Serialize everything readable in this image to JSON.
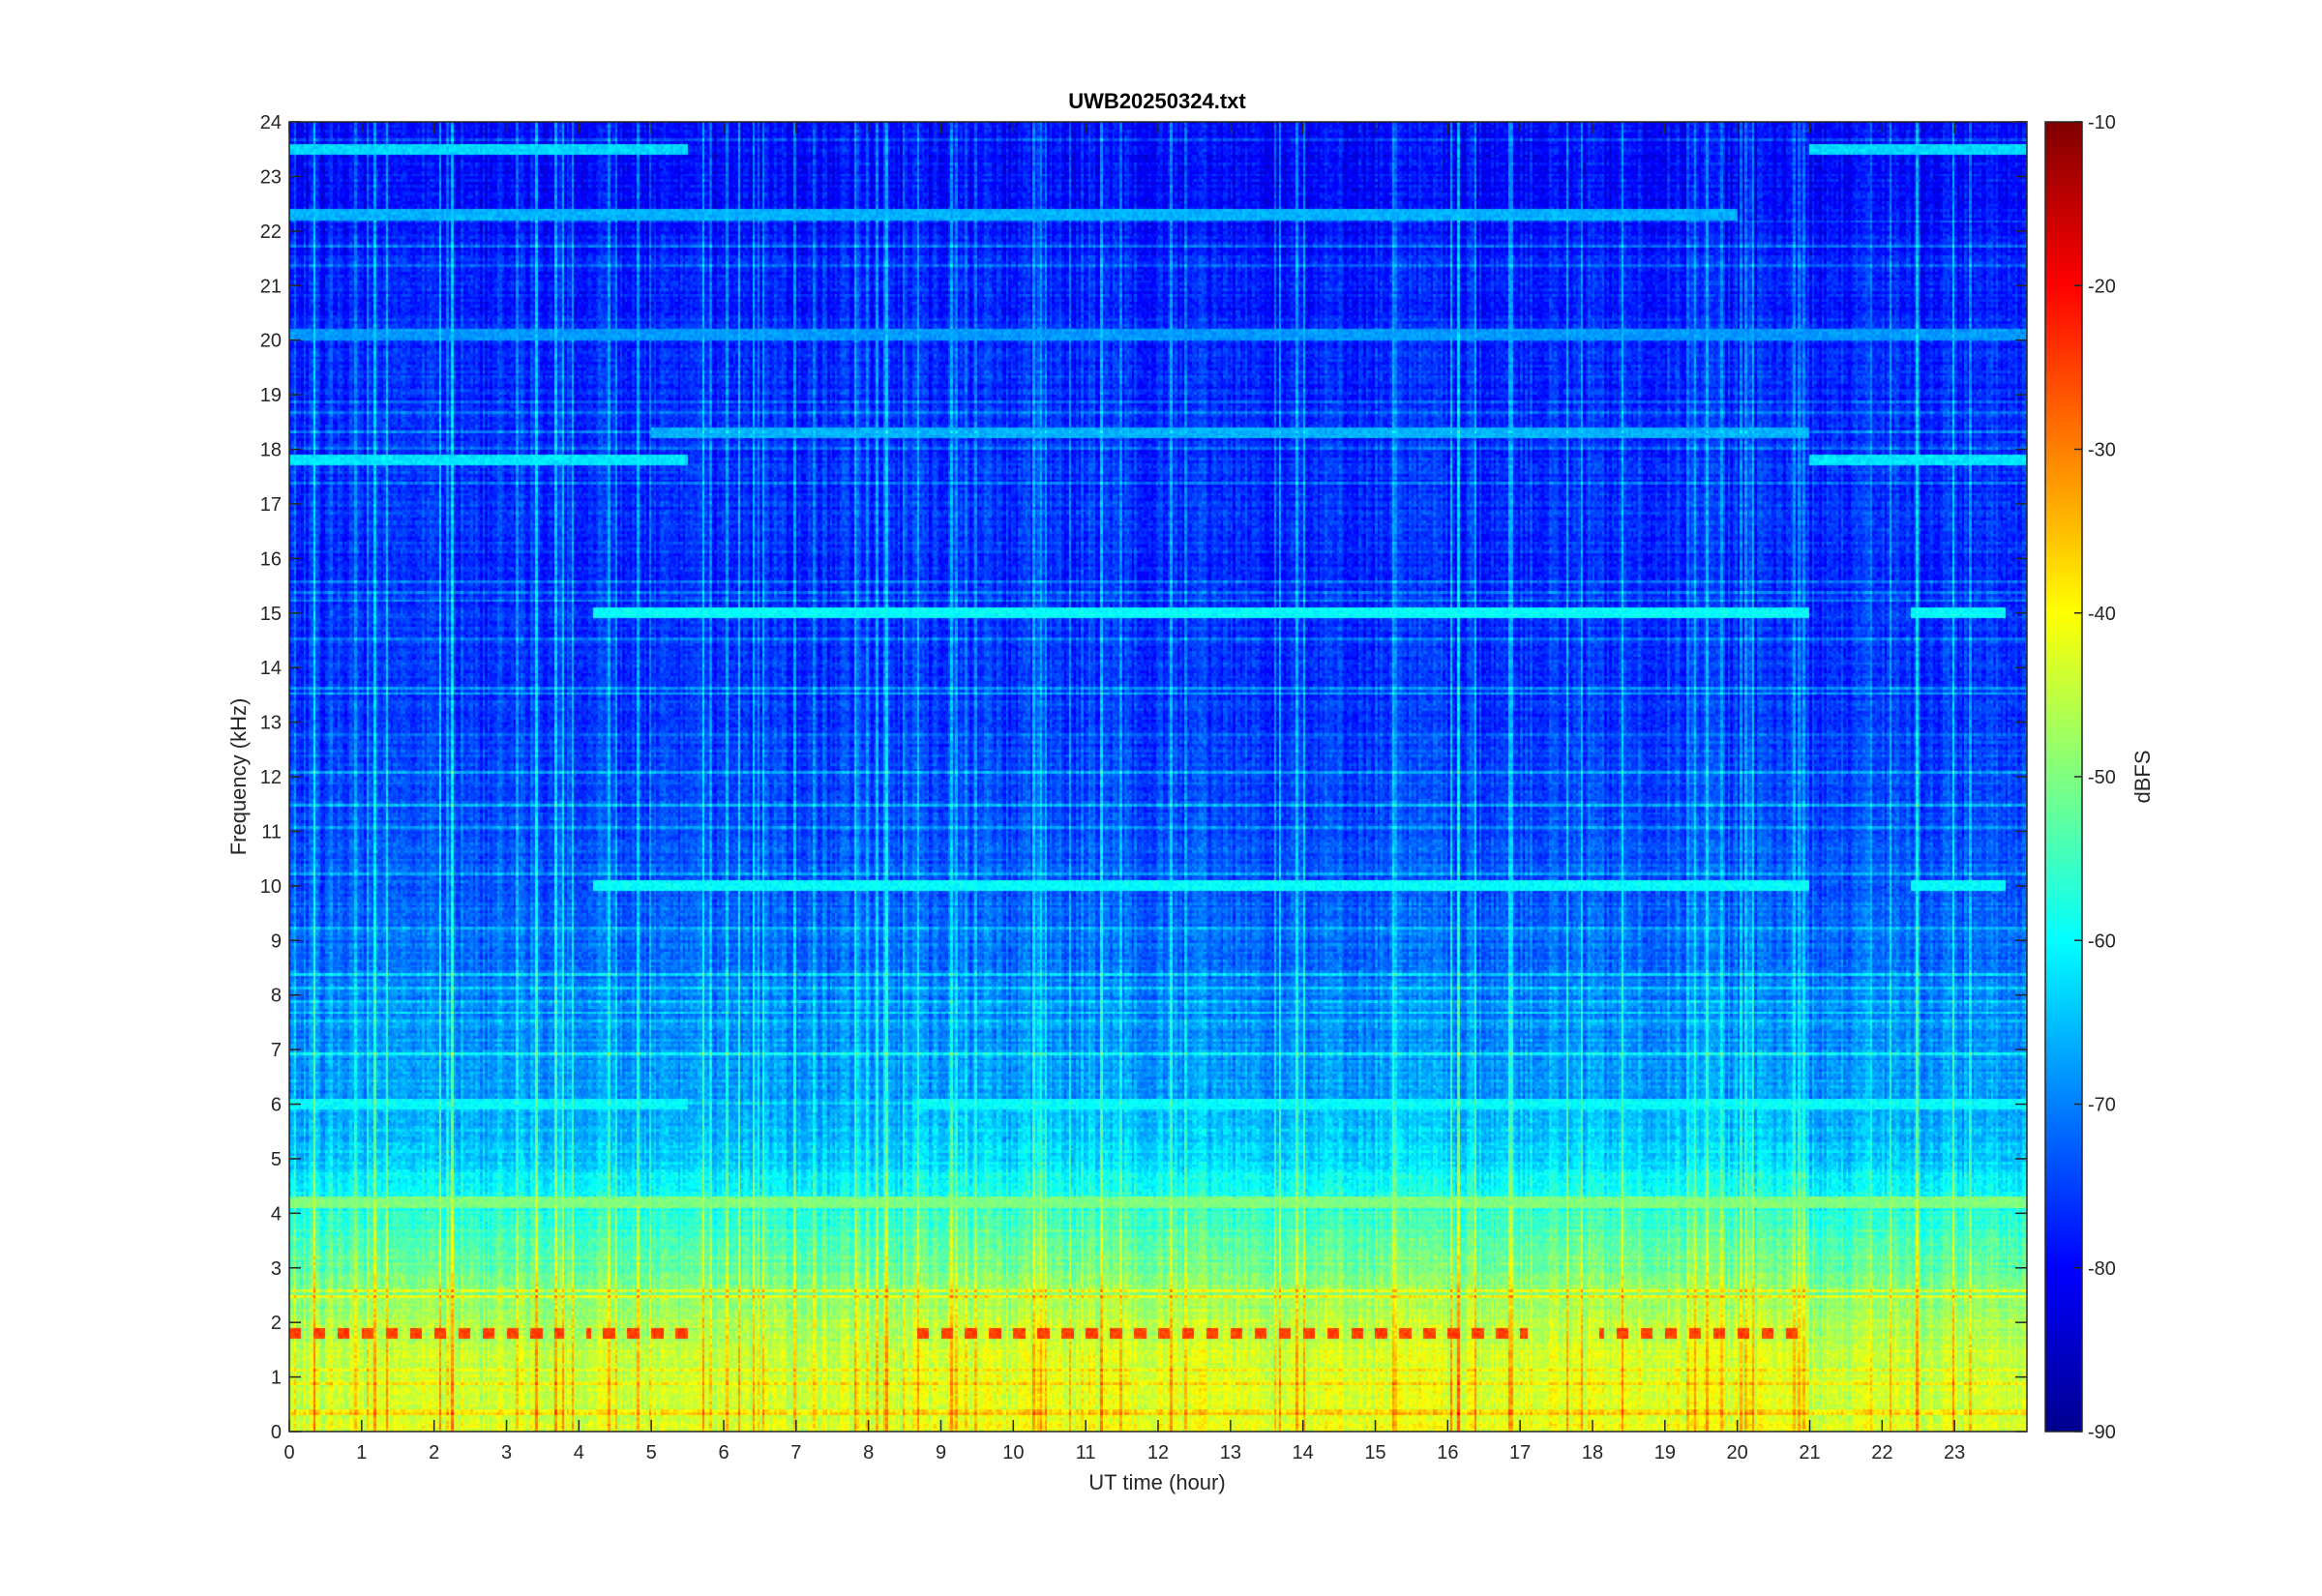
{
  "chart_data": {
    "type": "heatmap",
    "title": "UWB20250324.txt",
    "xlabel": "UT time (hour)",
    "ylabel": "Frequency (kHz)",
    "colorbar_label": "dBFS",
    "xlim": [
      0,
      24
    ],
    "ylim": [
      0,
      24
    ],
    "clim": [
      -90,
      -10
    ],
    "colormap": "jet",
    "x_ticks": [
      "0",
      "1",
      "2",
      "3",
      "4",
      "5",
      "6",
      "7",
      "8",
      "9",
      "10",
      "11",
      "12",
      "13",
      "14",
      "15",
      "16",
      "17",
      "18",
      "19",
      "20",
      "21",
      "22",
      "23"
    ],
    "y_ticks": [
      "0",
      "1",
      "2",
      "3",
      "4",
      "5",
      "6",
      "7",
      "8",
      "9",
      "10",
      "11",
      "12",
      "13",
      "14",
      "15",
      "16",
      "17",
      "18",
      "19",
      "20",
      "21",
      "22",
      "23",
      "24"
    ],
    "colorbar_ticks": [
      "-10",
      "-20",
      "-30",
      "-40",
      "-50",
      "-60",
      "-70",
      "-80",
      "-90"
    ],
    "background_level_by_freq_khz": [
      {
        "f": 0,
        "level": -43
      },
      {
        "f": 1,
        "level": -44
      },
      {
        "f": 2,
        "level": -47
      },
      {
        "f": 3,
        "level": -52
      },
      {
        "f": 4,
        "level": -57
      },
      {
        "f": 5,
        "level": -64
      },
      {
        "f": 6,
        "level": -67
      },
      {
        "f": 8,
        "level": -70
      },
      {
        "f": 10,
        "level": -73
      },
      {
        "f": 14,
        "level": -76
      },
      {
        "f": 20,
        "level": -77
      },
      {
        "f": 24,
        "level": -80
      }
    ],
    "persistent_lines": [
      {
        "freq_khz": 1.8,
        "level": -25,
        "segments": [
          [
            0,
            3.8
          ],
          [
            4.1,
            5.5
          ],
          [
            8.6,
            17.1
          ],
          [
            18.1,
            21
          ]
        ]
      },
      {
        "freq_khz": 4.2,
        "level": -50,
        "segments": [
          [
            0,
            24
          ]
        ]
      },
      {
        "freq_khz": 6.0,
        "level": -60,
        "segments": [
          [
            0,
            5.5
          ],
          [
            8.6,
            21
          ],
          [
            21,
            24
          ]
        ]
      },
      {
        "freq_khz": 10.0,
        "level": -60,
        "segments": [
          [
            4.2,
            21
          ],
          [
            22.4,
            23.7
          ]
        ]
      },
      {
        "freq_khz": 15.0,
        "level": -60,
        "segments": [
          [
            4.2,
            21
          ],
          [
            22.4,
            23.7
          ]
        ]
      },
      {
        "freq_khz": 17.8,
        "level": -62,
        "segments": [
          [
            0,
            5.5
          ],
          [
            21,
            24
          ]
        ]
      },
      {
        "freq_khz": 18.3,
        "level": -66,
        "segments": [
          [
            5,
            21
          ]
        ]
      },
      {
        "freq_khz": 20.1,
        "level": -68,
        "segments": [
          [
            0,
            24
          ]
        ]
      },
      {
        "freq_khz": 22.3,
        "level": -66,
        "segments": [
          [
            0,
            20
          ]
        ]
      },
      {
        "freq_khz": 23.5,
        "level": -63,
        "segments": [
          [
            0,
            5.5
          ],
          [
            21,
            24
          ]
        ]
      }
    ]
  }
}
